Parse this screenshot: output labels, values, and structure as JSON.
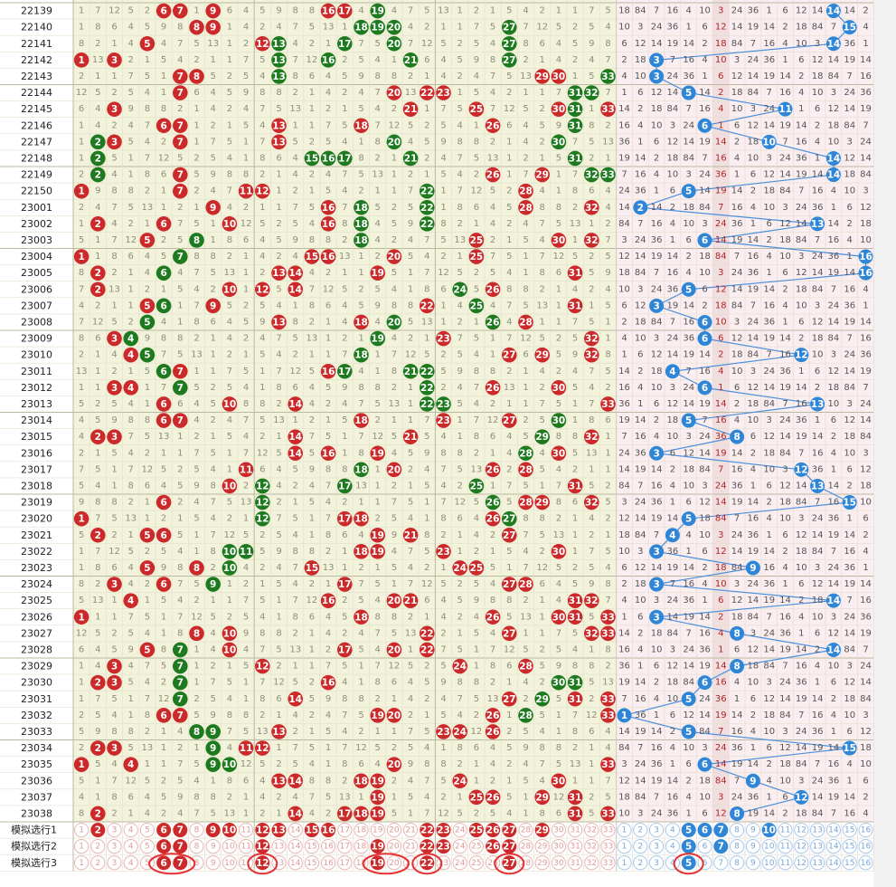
{
  "colors": {
    "red_ball": "#cc2a2a",
    "green_ball": "#1e7a1e",
    "blue_ball": "#2f86d6",
    "red_zone_bg": "#f3f3dc",
    "blue_zone_bg": "#fbeef0",
    "miss_text_red_zone": "#8f8f7a",
    "miss_text_blue_zone": "#555555",
    "hot_column_bg": "#e9d4d4",
    "connector_line": "#4b8fdc",
    "circle_outline": "#e53030"
  },
  "icons": {
    "drawn_front_number": "red-ball-icon",
    "repeated_front_number": "green-ball-icon",
    "drawn_back_number": "blue-ball-icon"
  },
  "front_numbers": [
    "1",
    "2",
    "3",
    "4",
    "5",
    "6",
    "7",
    "8",
    "9",
    "10",
    "11",
    "12",
    "13",
    "14",
    "15",
    "16",
    "17",
    "18",
    "19",
    "20",
    "21",
    "22",
    "23",
    "24",
    "25",
    "26",
    "27",
    "28",
    "29",
    "30",
    "31",
    "32",
    "33"
  ],
  "back_numbers": [
    "1",
    "2",
    "3",
    "4",
    "5",
    "6",
    "7",
    "8",
    "9",
    "10",
    "11",
    "12",
    "13",
    "14",
    "15",
    "16"
  ],
  "draws": [
    {
      "issue": "22139",
      "front": [
        6,
        7,
        9,
        16,
        17,
        19
      ],
      "repeat": [
        19
      ],
      "back": 14
    },
    {
      "issue": "22140",
      "front": [
        8,
        9,
        18,
        19,
        20,
        27
      ],
      "repeat": [
        18,
        19,
        20,
        27
      ],
      "back": 15
    },
    {
      "issue": "22141",
      "front": [
        5,
        12,
        13,
        17,
        20,
        27
      ],
      "repeat": [
        13,
        17,
        20,
        27
      ],
      "back": 14
    },
    {
      "issue": "22142",
      "front": [
        1,
        3,
        13,
        16,
        21,
        27
      ],
      "repeat": [
        13,
        16,
        21,
        27
      ],
      "back": 3
    },
    {
      "issue": "22143",
      "front": [
        7,
        8,
        13,
        29,
        30,
        33
      ],
      "repeat": [
        13,
        33
      ],
      "back": 3
    },
    {
      "issue": "22144",
      "front": [
        7,
        20,
        22,
        23,
        31,
        32
      ],
      "repeat": [
        31,
        32
      ],
      "back": 5
    },
    {
      "issue": "22145",
      "front": [
        3,
        21,
        25,
        30,
        31,
        33
      ],
      "repeat": [
        31
      ],
      "back": 11
    },
    {
      "issue": "22146",
      "front": [
        6,
        7,
        13,
        18,
        26,
        31
      ],
      "repeat": [
        31
      ],
      "back": 6
    },
    {
      "issue": "22147",
      "front": [
        2,
        3,
        7,
        13,
        20,
        30
      ],
      "repeat": [
        2,
        20,
        30
      ],
      "back": 10
    },
    {
      "issue": "22148",
      "front": [
        2,
        15,
        16,
        17,
        21,
        31
      ],
      "repeat": [
        2,
        15,
        16,
        17,
        21,
        31
      ],
      "back": 14
    },
    {
      "issue": "22149",
      "front": [
        2,
        7,
        26,
        29,
        32,
        33
      ],
      "repeat": [
        2,
        32,
        33
      ],
      "back": 14
    },
    {
      "issue": "22150",
      "front": [
        1,
        7,
        11,
        12,
        22,
        28
      ],
      "repeat": [
        22
      ],
      "back": 5
    },
    {
      "issue": "23001",
      "front": [
        9,
        16,
        18,
        22,
        28,
        32
      ],
      "repeat": [
        18,
        22
      ],
      "back": 2
    },
    {
      "issue": "23002",
      "front": [
        2,
        6,
        10,
        16,
        18,
        22
      ],
      "repeat": [
        18,
        22
      ],
      "back": 13
    },
    {
      "issue": "23003",
      "front": [
        5,
        8,
        18,
        25,
        30,
        32
      ],
      "repeat": [
        8,
        18
      ],
      "back": 6
    },
    {
      "issue": "23004",
      "front": [
        1,
        7,
        15,
        16,
        20,
        25
      ],
      "repeat": [
        7
      ],
      "back": 16
    },
    {
      "issue": "23005",
      "front": [
        2,
        6,
        13,
        14,
        19,
        31
      ],
      "repeat": [
        6
      ],
      "back": 16
    },
    {
      "issue": "23006",
      "front": [
        2,
        10,
        12,
        14,
        24,
        26
      ],
      "repeat": [
        24
      ],
      "back": 5
    },
    {
      "issue": "23007",
      "front": [
        5,
        6,
        9,
        22,
        25,
        31
      ],
      "repeat": [
        6,
        25
      ],
      "back": 3
    },
    {
      "issue": "23008",
      "front": [
        5,
        13,
        18,
        20,
        26,
        28
      ],
      "repeat": [
        5,
        20,
        26
      ],
      "back": 6
    },
    {
      "issue": "23009",
      "front": [
        3,
        4,
        19,
        23,
        32
      ],
      "repeat": [
        4,
        19
      ],
      "back": 6
    },
    {
      "issue": "23010",
      "front": [
        4,
        5,
        18,
        27,
        29,
        32
      ],
      "repeat": [
        5,
        18
      ],
      "back": 12
    },
    {
      "issue": "23011",
      "front": [
        6,
        7,
        16,
        17,
        21,
        22
      ],
      "repeat": [
        6,
        17,
        21,
        22
      ],
      "back": 4
    },
    {
      "issue": "23012",
      "front": [
        3,
        4,
        7,
        22,
        26,
        30
      ],
      "repeat": [
        7,
        22
      ],
      "back": 6
    },
    {
      "issue": "23013",
      "front": [
        6,
        10,
        14,
        22,
        23,
        33
      ],
      "repeat": [
        22,
        23
      ],
      "back": 13
    },
    {
      "issue": "23014",
      "front": [
        6,
        7,
        18,
        23,
        27,
        30
      ],
      "repeat": [
        30
      ],
      "back": 5
    },
    {
      "issue": "23015",
      "front": [
        2,
        3,
        14,
        21,
        29,
        32
      ],
      "repeat": [
        29
      ],
      "back": 8
    },
    {
      "issue": "23016",
      "front": [
        14,
        16,
        19,
        28,
        30
      ],
      "repeat": [
        28
      ],
      "back": 3
    },
    {
      "issue": "23017",
      "front": [
        11,
        18,
        20,
        26,
        28
      ],
      "repeat": [
        18
      ],
      "back": 12
    },
    {
      "issue": "23018",
      "front": [
        10,
        12,
        17,
        25,
        31
      ],
      "repeat": [
        12,
        17,
        25
      ],
      "back": 13
    },
    {
      "issue": "23019",
      "front": [
        6,
        12,
        26,
        28,
        29,
        32
      ],
      "repeat": [
        12,
        26
      ],
      "back": 15
    },
    {
      "issue": "23020",
      "front": [
        1,
        12,
        17,
        18,
        26,
        27
      ],
      "repeat": [
        12,
        27
      ],
      "back": 5
    },
    {
      "issue": "23021",
      "front": [
        2,
        5,
        6,
        19,
        21,
        27
      ],
      "repeat": [],
      "back": 4
    },
    {
      "issue": "23022",
      "front": [
        10,
        11,
        18,
        19,
        23,
        30
      ],
      "repeat": [
        10,
        11
      ],
      "back": 3
    },
    {
      "issue": "23023",
      "front": [
        5,
        8,
        10,
        15,
        24,
        25
      ],
      "repeat": [
        10
      ],
      "back": 9
    },
    {
      "issue": "23024",
      "front": [
        3,
        6,
        9,
        17,
        27,
        28
      ],
      "repeat": [
        9
      ],
      "back": 3
    },
    {
      "issue": "23025",
      "front": [
        4,
        16,
        20,
        21,
        31,
        32
      ],
      "repeat": [],
      "back": 14
    },
    {
      "issue": "23026",
      "front": [
        1,
        18,
        26,
        30,
        31,
        33
      ],
      "repeat": [],
      "back": 3
    },
    {
      "issue": "23027",
      "front": [
        8,
        10,
        22,
        27,
        32,
        33
      ],
      "repeat": [],
      "back": 8
    },
    {
      "issue": "23028",
      "front": [
        5,
        7,
        10,
        17,
        20,
        22
      ],
      "repeat": [
        7
      ],
      "back": 14
    },
    {
      "issue": "23029",
      "front": [
        3,
        7,
        12,
        24,
        28
      ],
      "repeat": [
        7
      ],
      "back": 8
    },
    {
      "issue": "23030",
      "front": [
        2,
        3,
        7,
        16,
        30,
        31
      ],
      "repeat": [
        7,
        30,
        31
      ],
      "back": 6
    },
    {
      "issue": "23031",
      "front": [
        7,
        14,
        27,
        29,
        31,
        33
      ],
      "repeat": [
        7,
        29
      ],
      "back": 5
    },
    {
      "issue": "23032",
      "front": [
        6,
        7,
        19,
        20,
        26,
        28,
        33
      ],
      "repeat": [
        28
      ],
      "back": 1
    },
    {
      "issue": "23033",
      "front": [
        8,
        9,
        13,
        23,
        24,
        26
      ],
      "repeat": [
        8,
        9
      ],
      "back": 5
    },
    {
      "issue": "23034",
      "front": [
        2,
        3,
        9,
        11,
        12
      ],
      "repeat": [
        9
      ],
      "back": 15
    },
    {
      "issue": "23035",
      "front": [
        1,
        4,
        9,
        10,
        20,
        33
      ],
      "repeat": [
        9,
        10
      ],
      "back": 6
    },
    {
      "issue": "23036",
      "front": [
        13,
        14,
        18,
        19,
        24,
        30
      ],
      "repeat": [],
      "back": 9
    },
    {
      "issue": "23037",
      "front": [
        19,
        25,
        26,
        29,
        31
      ],
      "repeat": [],
      "back": 12
    },
    {
      "issue": "23038",
      "front": [
        2,
        14,
        17,
        18,
        19,
        31,
        33
      ],
      "repeat": [],
      "back": 8
    }
  ],
  "front_missing_sample": [
    "5",
    "1",
    "7",
    "12",
    "5",
    "2",
    "5",
    "4",
    "1",
    "8",
    "6",
    "4",
    "5",
    "9",
    "8",
    "8",
    "2",
    "1",
    "4",
    "2",
    "4",
    "7",
    "5",
    "13",
    "1",
    "2",
    "1",
    "5",
    "4",
    "2",
    "1",
    "1",
    "7"
  ],
  "back_missing_sample": [
    "2",
    "18",
    "84",
    "7",
    "16",
    "4",
    "10",
    "3",
    "24",
    "36",
    "1",
    "6",
    "12",
    "14",
    "19",
    "14"
  ],
  "simulations": [
    {
      "label": "模拟选行1",
      "front": [
        2,
        6,
        7,
        9,
        10,
        12,
        13,
        15,
        16,
        22,
        23,
        25,
        26,
        27,
        29
      ],
      "back": [
        5,
        6,
        7,
        10
      ]
    },
    {
      "label": "模拟选行2",
      "front": [
        6,
        7,
        12,
        19,
        22,
        23,
        26,
        27
      ],
      "back": [
        5,
        7
      ]
    },
    {
      "label": "模拟选行3",
      "front": [
        6,
        7,
        12,
        19,
        22,
        27
      ],
      "back": [
        5
      ]
    }
  ],
  "circled_marks": [
    {
      "zone": "front",
      "from": 6,
      "to": 7
    },
    {
      "zone": "front",
      "from": 12,
      "to": 12
    },
    {
      "zone": "front",
      "from": 19,
      "to": 20
    },
    {
      "zone": "front",
      "from": 22,
      "to": 22
    },
    {
      "zone": "front",
      "from": 27,
      "to": 27
    },
    {
      "zone": "back",
      "from": 5,
      "to": 5
    }
  ]
}
